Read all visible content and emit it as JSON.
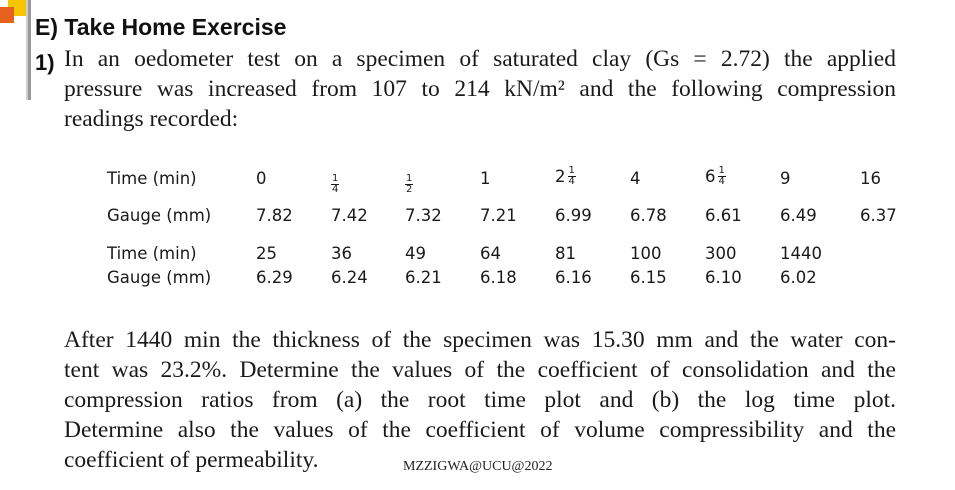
{
  "heading": "E) Take Home Exercise",
  "question_number": "1)",
  "intro_lines": [
    "In an oedometer test on a specimen of saturated clay (Gs = 2.72) the applied",
    "pressure was increased from 107 to 214 kN/m² and the following compression",
    "readings recorded:"
  ],
  "table": {
    "row1_label": "Time (min)",
    "row1_values": [
      "0",
      "¼",
      "½",
      "1",
      "2¼",
      "4",
      "6¼",
      "9",
      "16"
    ],
    "row2_label": "Gauge (mm)",
    "row2_values": [
      "7.82",
      "7.42",
      "7.32",
      "7.21",
      "6.99",
      "6.78",
      "6.61",
      "6.49",
      "6.37"
    ],
    "row3_label": "Time (min)",
    "row3_values": [
      "25",
      "36",
      "49",
      "64",
      "81",
      "100",
      "300",
      "1440"
    ],
    "row4_label": "Gauge (mm)",
    "row4_values": [
      "6.29",
      "6.24",
      "6.21",
      "6.18",
      "6.16",
      "6.15",
      "6.10",
      "6.02"
    ]
  },
  "task_lines": [
    "After 1440 min the thickness of the specimen was 15.30 mm and the water con-",
    "tent was 23.2%. Determine the values of the coefficient of consolidation and the",
    "compression ratios from (a) the root time plot and (b) the log time plot.",
    "Determine also the values of the coefficient of volume compressibility and the",
    "coefficient of permeability."
  ],
  "footer": "MZZIGWA@UCU@2022",
  "colors": {
    "accent_yellow": "#f7c500",
    "accent_orange": "#e8621f",
    "bar_grey": "#9a9a9a"
  }
}
